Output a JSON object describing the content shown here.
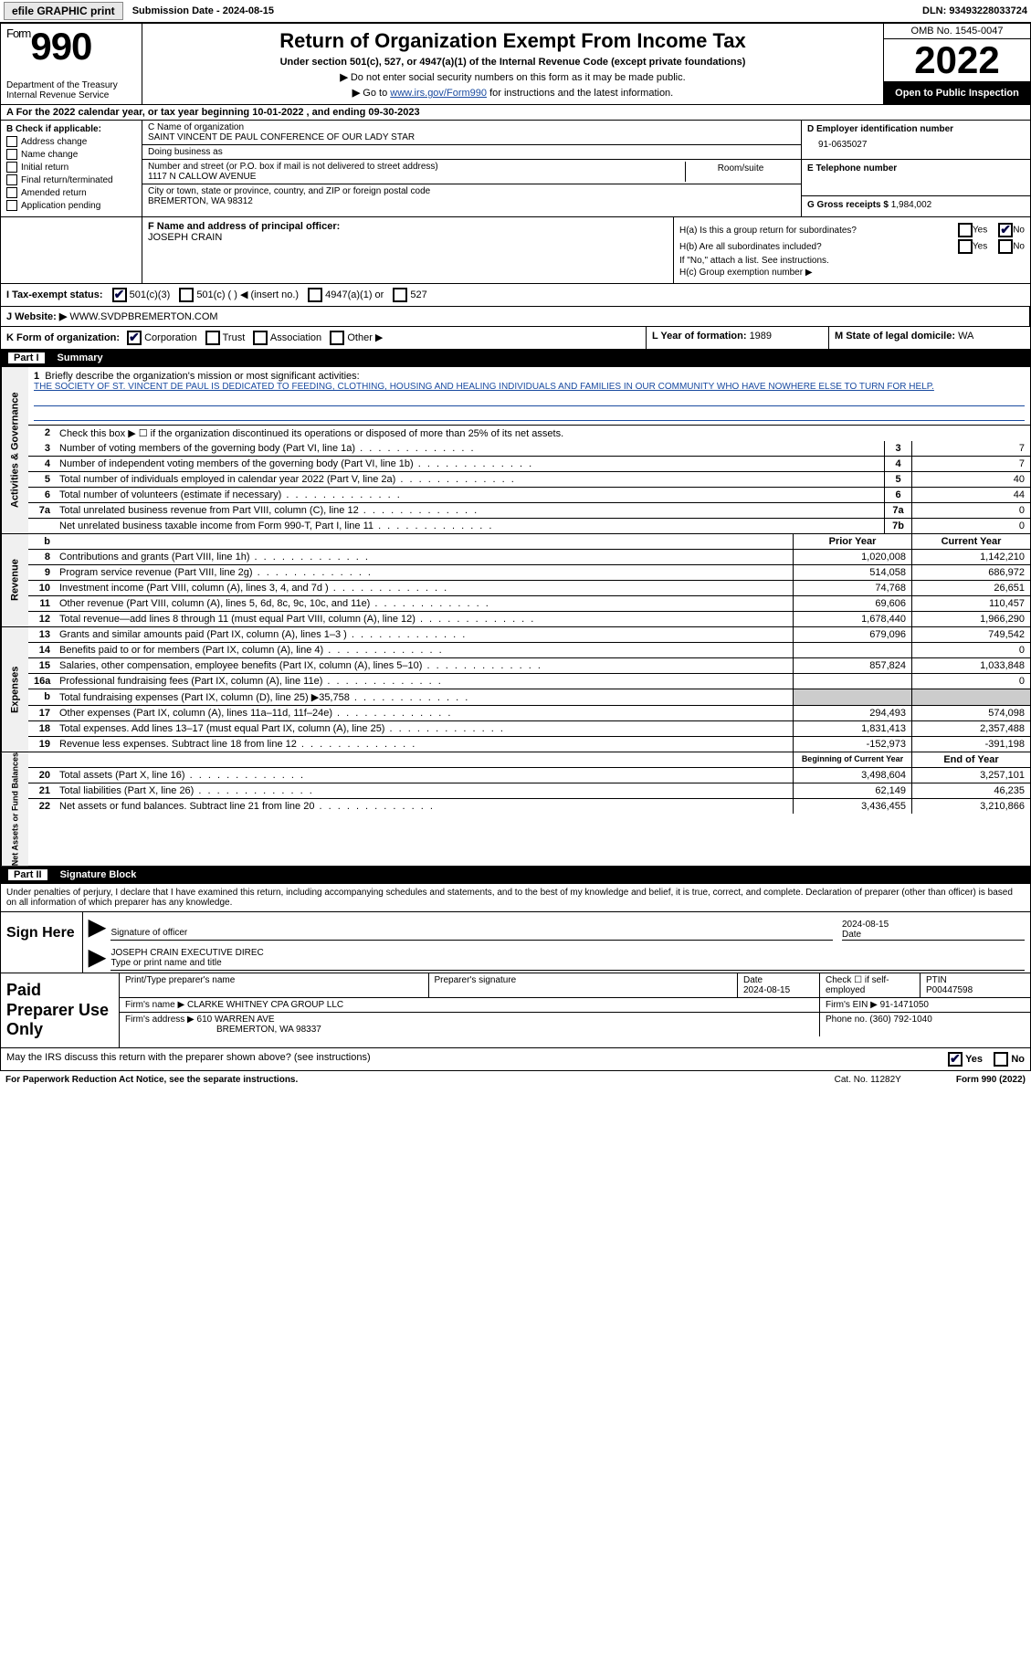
{
  "topbar": {
    "efile_btn": "efile GRAPHIC print",
    "sub_date_label": "Submission Date - ",
    "sub_date": "2024-08-15",
    "dln_label": "DLN: ",
    "dln": "93493228033724"
  },
  "header": {
    "form_word": "Form",
    "form_num": "990",
    "dept": "Department of the Treasury\nInternal Revenue Service",
    "title": "Return of Organization Exempt From Income Tax",
    "subtitle": "Under section 501(c), 527, or 4947(a)(1) of the Internal Revenue Code (except private foundations)",
    "note1_arrow": "▶",
    "note1": "Do not enter social security numbers on this form as it may be made public.",
    "note2_prefix": "Go to ",
    "note2_link": "www.irs.gov/Form990",
    "note2_suffix": " for instructions and the latest information.",
    "omb": "OMB No. 1545-0047",
    "year": "2022",
    "open_public": "Open to Public Inspection"
  },
  "row_a": {
    "prefix": "A For the 2022 calendar year, or tax year beginning ",
    "begin": "10-01-2022",
    "mid": " , and ending ",
    "end": "09-30-2023"
  },
  "col_b": {
    "label": "B Check if applicable:",
    "items": [
      "Address change",
      "Name change",
      "Initial return",
      "Final return/terminated",
      "Amended return",
      "Application pending"
    ]
  },
  "col_c": {
    "c_label": "C Name of organization",
    "c_name": "SAINT VINCENT DE PAUL CONFERENCE OF OUR LADY STAR",
    "dba_label": "Doing business as",
    "addr_label": "Number and street (or P.O. box if mail is not delivered to street address)",
    "addr": "1117 N CALLOW AVENUE",
    "room_label": "Room/suite",
    "city_label": "City or town, state or province, country, and ZIP or foreign postal code",
    "city": "BREMERTON, WA  98312"
  },
  "col_d": {
    "d_label": "D Employer identification number",
    "ein": "91-0635027",
    "e_label": "E Telephone number",
    "g_label": "G Gross receipts $ ",
    "g_val": "1,984,002"
  },
  "row_f": {
    "f_label": "F  Name and address of principal officer:",
    "f_name": "JOSEPH CRAIN"
  },
  "row_h": {
    "ha_label": "H(a)  Is this a group return for subordinates?",
    "hb_label": "H(b)  Are all subordinates included?",
    "hb_note": "If \"No,\" attach a list. See instructions.",
    "hc_label": "H(c)  Group exemption number ▶",
    "yes": "Yes",
    "no": "No"
  },
  "tax_exempt": {
    "label": "I  Tax-exempt status:",
    "opt1": "501(c)(3)",
    "opt2": "501(c) (  ) ◀ (insert no.)",
    "opt3": "4947(a)(1) or",
    "opt4": "527"
  },
  "row_j": {
    "label": "J  Website: ▶  ",
    "value": "WWW.SVDPBREMERTON.COM"
  },
  "row_k": {
    "label": "K Form of organization:",
    "opts": [
      "Corporation",
      "Trust",
      "Association",
      "Other ▶"
    ],
    "l_label": "L Year of formation: ",
    "l_val": "1989",
    "m_label": "M State of legal domicile: ",
    "m_val": "WA"
  },
  "part1": {
    "partnum": "Part I",
    "title": "Summary"
  },
  "summary": {
    "tab1": "Activities & Governance",
    "tab2": "Revenue",
    "tab3": "Expenses",
    "tab4": "Net Assets or Fund Balances",
    "line1_label": "Briefly describe the organization's mission or most significant activities:",
    "mission": "THE SOCIETY OF ST. VINCENT DE PAUL IS DEDICATED TO FEEDING, CLOTHING, HOUSING AND HEALING INDIVIDUALS AND FAMILIES IN OUR COMMUNITY WHO HAVE NOWHERE ELSE TO TURN FOR HELP.",
    "line2": "Check this box ▶ ☐ if the organization discontinued its operations or disposed of more than 25% of its net assets.",
    "lines_ag": [
      {
        "n": "3",
        "label": "Number of voting members of the governing body (Part VI, line 1a)",
        "box": "3",
        "val": "7"
      },
      {
        "n": "4",
        "label": "Number of independent voting members of the governing body (Part VI, line 1b)",
        "box": "4",
        "val": "7"
      },
      {
        "n": "5",
        "label": "Total number of individuals employed in calendar year 2022 (Part V, line 2a)",
        "box": "5",
        "val": "40"
      },
      {
        "n": "6",
        "label": "Total number of volunteers (estimate if necessary)",
        "box": "6",
        "val": "44"
      },
      {
        "n": "7a",
        "label": "Total unrelated business revenue from Part VIII, column (C), line 12",
        "box": "7a",
        "val": "0"
      },
      {
        "n": "",
        "label": "Net unrelated business taxable income from Form 990-T, Part I, line 11",
        "box": "7b",
        "val": "0"
      }
    ],
    "col_prior": "Prior Year",
    "col_current": "Current Year",
    "lines_rev": [
      {
        "n": "8",
        "label": "Contributions and grants (Part VIII, line 1h)",
        "p": "1,020,008",
        "c": "1,142,210"
      },
      {
        "n": "9",
        "label": "Program service revenue (Part VIII, line 2g)",
        "p": "514,058",
        "c": "686,972"
      },
      {
        "n": "10",
        "label": "Investment income (Part VIII, column (A), lines 3, 4, and 7d )",
        "p": "74,768",
        "c": "26,651"
      },
      {
        "n": "11",
        "label": "Other revenue (Part VIII, column (A), lines 5, 6d, 8c, 9c, 10c, and 11e)",
        "p": "69,606",
        "c": "110,457"
      },
      {
        "n": "12",
        "label": "Total revenue—add lines 8 through 11 (must equal Part VIII, column (A), line 12)",
        "p": "1,678,440",
        "c": "1,966,290"
      }
    ],
    "lines_exp": [
      {
        "n": "13",
        "label": "Grants and similar amounts paid (Part IX, column (A), lines 1–3 )",
        "p": "679,096",
        "c": "749,542"
      },
      {
        "n": "14",
        "label": "Benefits paid to or for members (Part IX, column (A), line 4)",
        "p": "",
        "c": "0"
      },
      {
        "n": "15",
        "label": "Salaries, other compensation, employee benefits (Part IX, column (A), lines 5–10)",
        "p": "857,824",
        "c": "1,033,848"
      },
      {
        "n": "16a",
        "label": "Professional fundraising fees (Part IX, column (A), line 11e)",
        "p": "",
        "c": "0"
      },
      {
        "n": "b",
        "label": "Total fundraising expenses (Part IX, column (D), line 25) ▶35,758",
        "p": "SHADE",
        "c": "SHADE"
      },
      {
        "n": "17",
        "label": "Other expenses (Part IX, column (A), lines 11a–11d, 11f–24e)",
        "p": "294,493",
        "c": "574,098"
      },
      {
        "n": "18",
        "label": "Total expenses. Add lines 13–17 (must equal Part IX, column (A), line 25)",
        "p": "1,831,413",
        "c": "2,357,488"
      },
      {
        "n": "19",
        "label": "Revenue less expenses. Subtract line 18 from line 12",
        "p": "-152,973",
        "c": "-391,198"
      }
    ],
    "col_begin": "Beginning of Current Year",
    "col_end": "End of Year",
    "lines_net": [
      {
        "n": "20",
        "label": "Total assets (Part X, line 16)",
        "p": "3,498,604",
        "c": "3,257,101"
      },
      {
        "n": "21",
        "label": "Total liabilities (Part X, line 26)",
        "p": "62,149",
        "c": "46,235"
      },
      {
        "n": "22",
        "label": "Net assets or fund balances. Subtract line 21 from line 20",
        "p": "3,436,455",
        "c": "3,210,866"
      }
    ]
  },
  "part2": {
    "partnum": "Part II",
    "title": "Signature Block"
  },
  "sig": {
    "declare": "Under penalties of perjury, I declare that I have examined this return, including accompanying schedules and statements, and to the best of my knowledge and belief, it is true, correct, and complete. Declaration of preparer (other than officer) is based on all information of which preparer has any knowledge.",
    "sign_here": "Sign Here",
    "sig_officer": "Signature of officer",
    "date_val": "2024-08-15",
    "date_label": "Date",
    "name_title": "JOSEPH CRAIN  EXECUTIVE DIREC",
    "type_label": "Type or print name and title"
  },
  "prep": {
    "label": "Paid Preparer Use Only",
    "h1": "Print/Type preparer's name",
    "h2": "Preparer's signature",
    "h3": "Date",
    "h3v": "2024-08-15",
    "h4": "Check ☐ if self-employed",
    "h5": "PTIN",
    "h5v": "P00447598",
    "firm_name_label": "Firm's name    ▶ ",
    "firm_name": "CLARKE WHITNEY CPA GROUP LLC",
    "firm_ein_label": "Firm's EIN ▶ ",
    "firm_ein": "91-1471050",
    "firm_addr_label": "Firm's address ▶ ",
    "firm_addr1": "610 WARREN AVE",
    "firm_addr2": "BREMERTON, WA  98337",
    "phone_label": "Phone no. ",
    "phone": "(360) 792-1040"
  },
  "irs_discuss": {
    "q": "May the IRS discuss this return with the preparer shown above? (see instructions)",
    "yes": "Yes",
    "no": "No"
  },
  "footer": {
    "left": "For Paperwork Reduction Act Notice, see the separate instructions.",
    "cat": "Cat. No. 11282Y",
    "form": "Form 990 (2022)"
  }
}
